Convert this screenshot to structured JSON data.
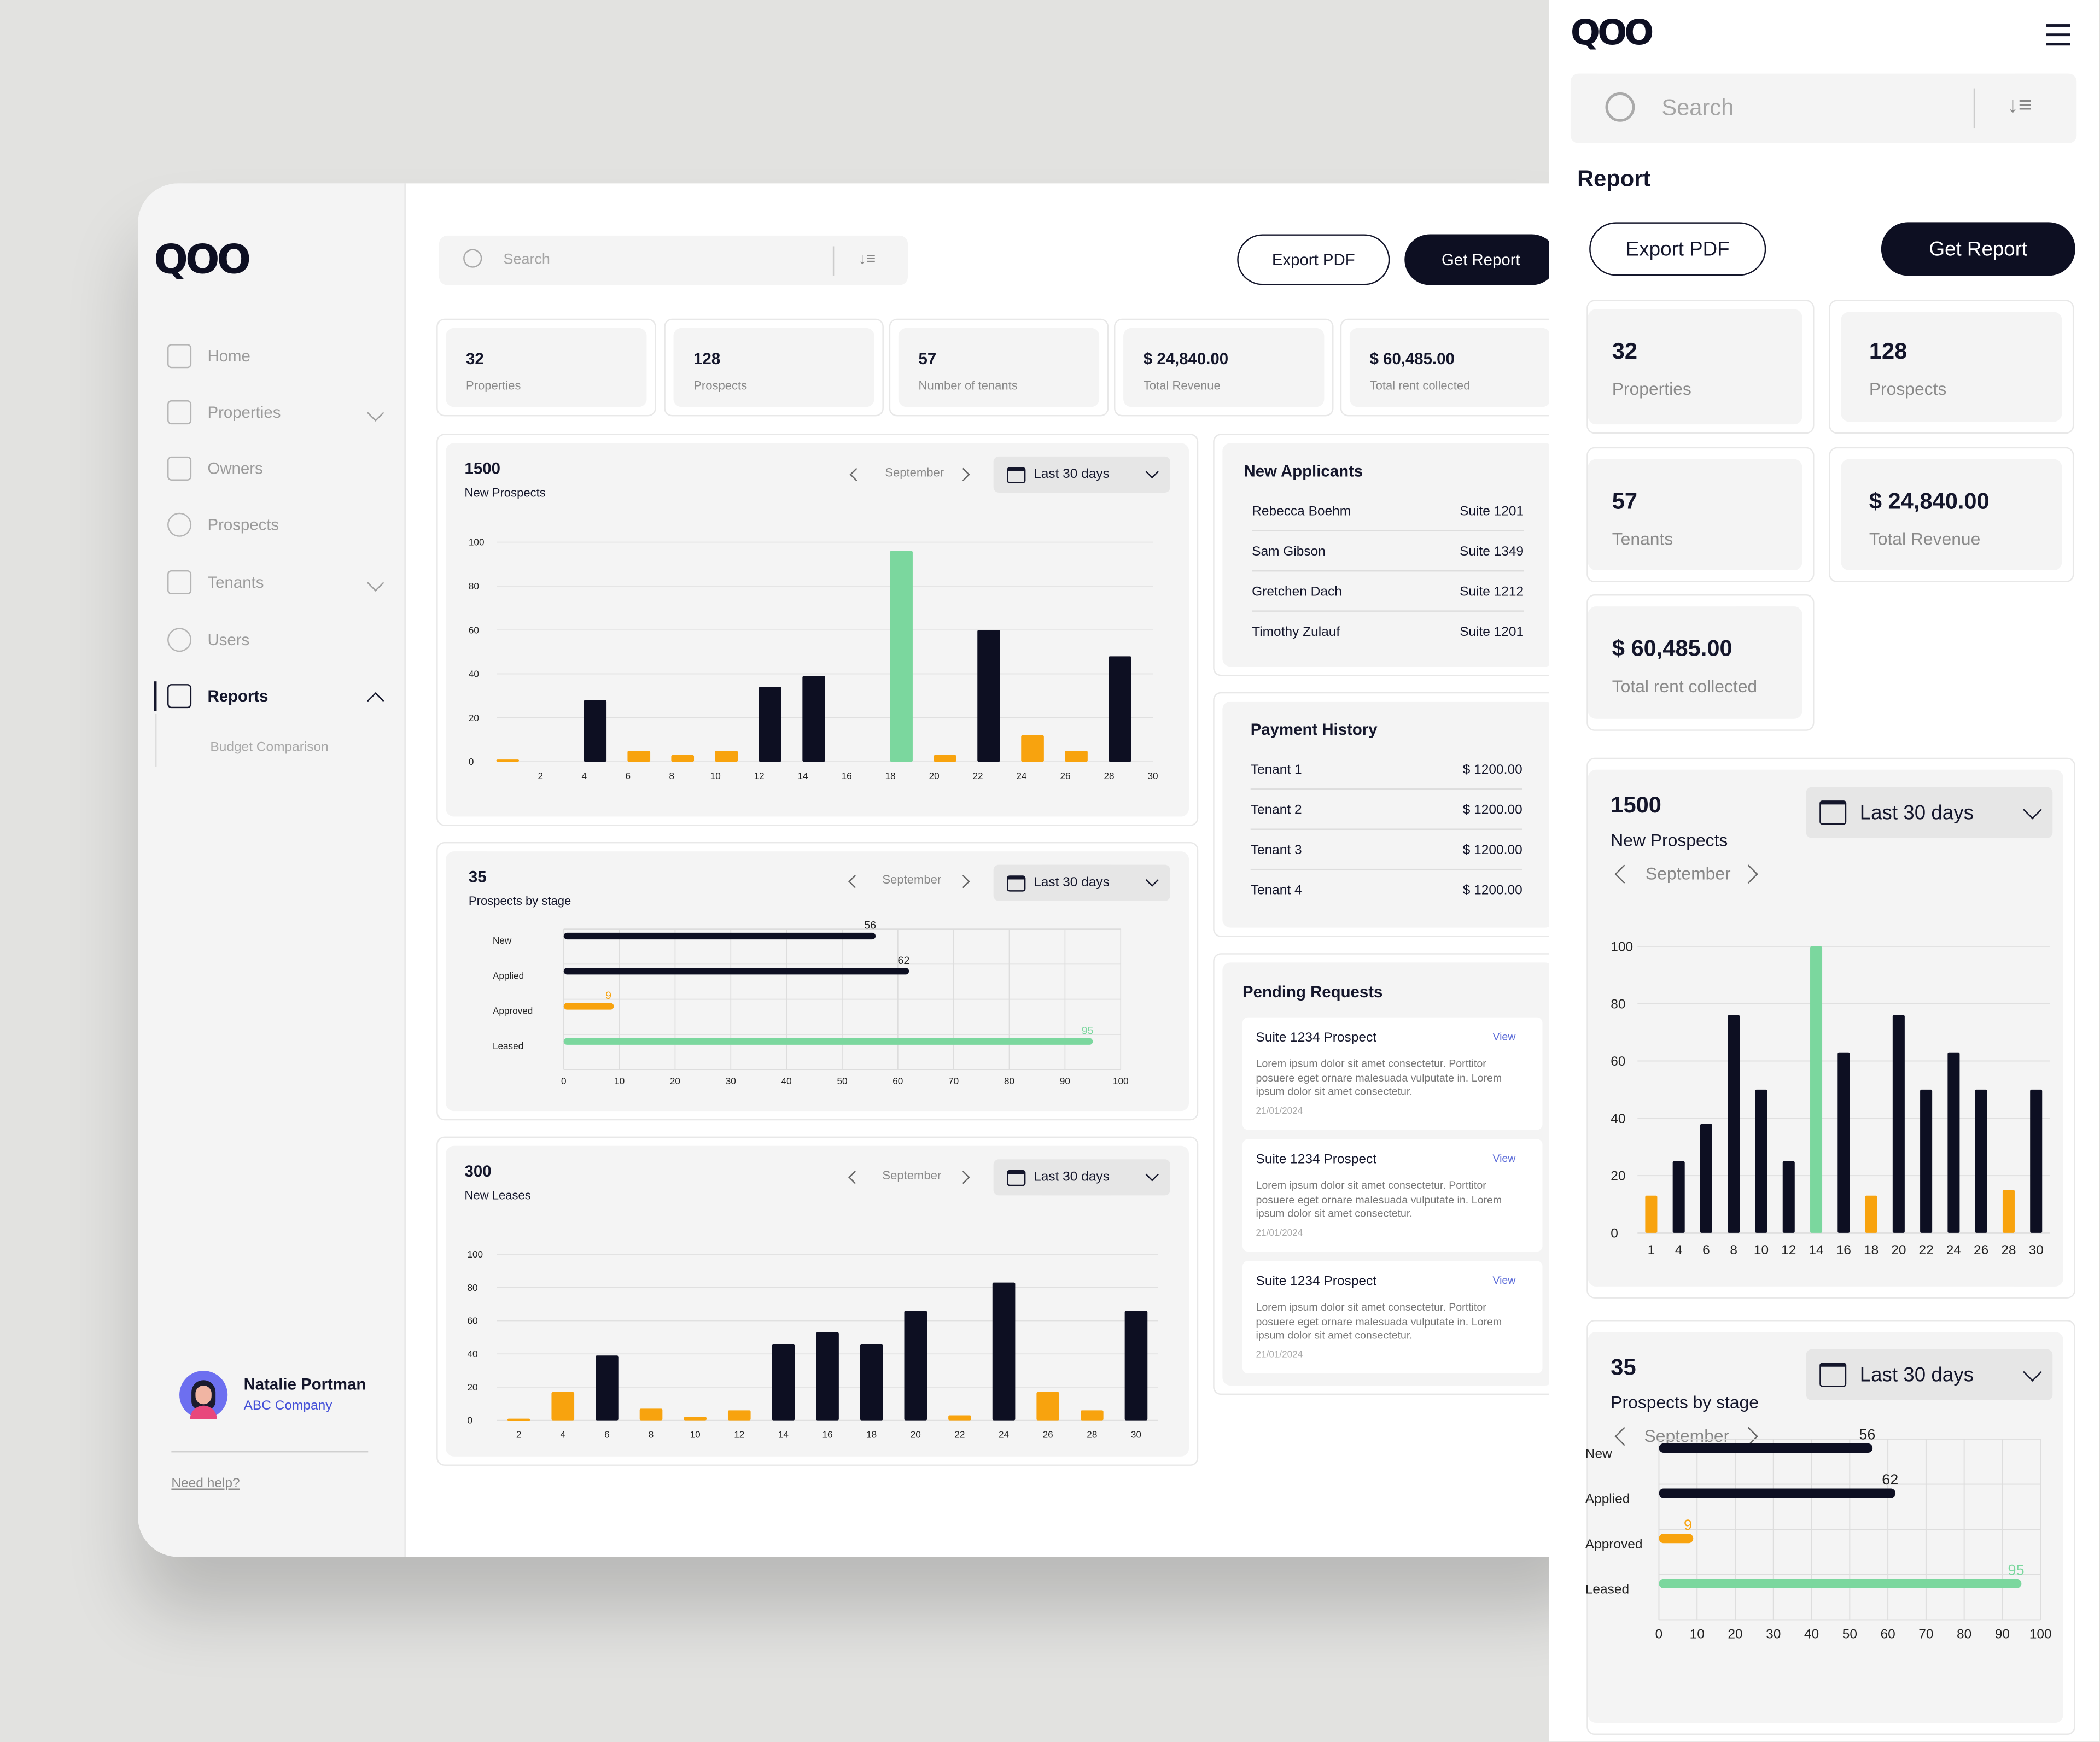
{
  "brand": {
    "logo": "QOO"
  },
  "search": {
    "placeholder": "Search"
  },
  "actions": {
    "export": "Export PDF",
    "report": "Get Report"
  },
  "sidebar": {
    "items": [
      {
        "label": "Home"
      },
      {
        "label": "Properties"
      },
      {
        "label": "Owners"
      },
      {
        "label": "Prospects"
      },
      {
        "label": "Tenants"
      },
      {
        "label": "Users"
      },
      {
        "label": "Reports"
      }
    ],
    "sub_item": "Budget Comparison",
    "user": {
      "name": "Natalie Portman",
      "company": "ABC Company"
    },
    "help": "Need help?"
  },
  "stats": [
    {
      "value": "32",
      "label": "Properties"
    },
    {
      "value": "128",
      "label": "Prospects"
    },
    {
      "value": "57",
      "label": "Number of tenants"
    },
    {
      "value": "$ 24,840.00",
      "label": "Total Revenue"
    },
    {
      "value": "$ 60,485.00",
      "label": "Total rent collected"
    }
  ],
  "mobile_stats": [
    {
      "value": "32",
      "label": "Properties"
    },
    {
      "value": "128",
      "label": "Prospects"
    },
    {
      "value": "57",
      "label": "Tenants"
    },
    {
      "value": "$ 24,840.00",
      "label": "Total Revenue"
    },
    {
      "value": "$ 60,485.00",
      "label": "Total rent collected"
    }
  ],
  "period": {
    "month": "September",
    "range": "Last 30 days"
  },
  "new_applicants": {
    "title": "New Applicants",
    "rows": [
      {
        "name": "Rebecca Boehm",
        "suite": "Suite 1201"
      },
      {
        "name": "Sam Gibson",
        "suite": "Suite 1349"
      },
      {
        "name": "Gretchen Dach",
        "suite": "Suite 1212"
      },
      {
        "name": "Timothy Zulauf",
        "suite": "Suite 1201"
      }
    ]
  },
  "payment_history": {
    "title": "Payment History",
    "rows": [
      {
        "tenant": "Tenant 1",
        "amount": "$ 1200.00"
      },
      {
        "tenant": "Tenant 2",
        "amount": "$ 1200.00"
      },
      {
        "tenant": "Tenant 3",
        "amount": "$ 1200.00"
      },
      {
        "tenant": "Tenant 4",
        "amount": "$ 1200.00"
      }
    ]
  },
  "pending_requests": {
    "title": "Pending Requests",
    "items": [
      {
        "title": "Suite 1234 Prospect",
        "action": "View",
        "text": "Lorem ipsum dolor sit amet consectetur. Porttitor posuere eget ornare malesuada vulputate in. Lorem ipsum dolor sit amet consectetur.",
        "date": "21/01/2024"
      },
      {
        "title": "Suite 1234 Prospect",
        "action": "View",
        "text": "Lorem ipsum dolor sit amet consectetur. Porttitor posuere eget ornare malesuada vulputate in. Lorem ipsum dolor sit amet consectetur.",
        "date": "21/01/2024"
      },
      {
        "title": "Suite 1234 Prospect",
        "action": "View",
        "text": "Lorem ipsum dolor sit amet consectetur. Porttitor posuere eget ornare malesuada vulputate in. Lorem ipsum dolor sit amet consectetur.",
        "date": "21/01/2024"
      }
    ]
  },
  "mobile": {
    "title": "Report"
  },
  "colors": {
    "dark": "#0d0f22",
    "orange": "#f8a30e",
    "green": "#7bd79e"
  },
  "chart_data": [
    {
      "id": "new_prospects",
      "type": "bar",
      "value": "1500",
      "title": "New Prospects",
      "x": [
        1,
        2,
        3,
        4,
        5,
        6,
        7,
        8,
        9,
        10,
        11,
        12,
        13,
        14,
        15,
        16,
        17,
        18,
        19,
        20,
        21,
        22,
        23,
        24,
        25,
        26,
        27,
        28,
        29,
        30
      ],
      "x_ticks": [
        2,
        4,
        6,
        8,
        10,
        12,
        14,
        16,
        18,
        20,
        22,
        24,
        26,
        28,
        30
      ],
      "values": [
        1,
        0,
        0,
        0,
        28,
        0,
        5,
        0,
        3,
        0,
        5,
        0,
        34,
        0,
        39,
        0,
        0,
        0,
        96,
        0,
        3,
        0,
        60,
        0,
        12,
        0,
        5,
        0,
        48,
        0
      ],
      "colors": [
        "o",
        "o",
        "o",
        "o",
        "d",
        "d",
        "o",
        "o",
        "o",
        "o",
        "o",
        "o",
        "d",
        "d",
        "d",
        "d",
        "d",
        "d",
        "g",
        "g",
        "o",
        "o",
        "d",
        "d",
        "o",
        "o",
        "o",
        "o",
        "d",
        "d"
      ],
      "ylim": [
        0,
        100
      ],
      "y_ticks": [
        0,
        20,
        40,
        60,
        80,
        100
      ]
    },
    {
      "id": "prospects_by_stage",
      "type": "bar",
      "orientation": "horizontal",
      "value": "35",
      "title": "Prospects by stage",
      "categories": [
        "New",
        "Applied",
        "Approved",
        "Leased"
      ],
      "values": [
        56,
        62,
        9,
        95
      ],
      "colors": [
        "d",
        "d",
        "o",
        "g"
      ],
      "xlim": [
        0,
        100
      ],
      "x_ticks": [
        0,
        10,
        20,
        30,
        40,
        50,
        60,
        70,
        80,
        90,
        100
      ]
    },
    {
      "id": "new_leases",
      "type": "bar",
      "value": "300",
      "title": "New Leases",
      "x_ticks": [
        2,
        4,
        6,
        8,
        10,
        12,
        14,
        16,
        18,
        20,
        22,
        24,
        26,
        28,
        30
      ],
      "values": [
        1,
        17,
        39,
        7,
        2,
        6,
        46,
        53,
        46,
        66,
        3,
        83,
        17,
        6,
        66
      ],
      "colors": [
        "o",
        "o",
        "d",
        "o",
        "o",
        "o",
        "d",
        "d",
        "d",
        "d",
        "o",
        "d",
        "o",
        "o",
        "d"
      ],
      "ylim": [
        0,
        100
      ],
      "y_ticks": [
        0,
        20,
        40,
        60,
        80,
        100
      ]
    },
    {
      "id": "mobile_new_prospects",
      "type": "bar",
      "value": "1500",
      "title": "New Prospects",
      "x_ticks": [
        1,
        4,
        6,
        8,
        10,
        12,
        14,
        16,
        18,
        20,
        22,
        24,
        26,
        28,
        30
      ],
      "values": [
        13,
        25,
        38,
        76,
        50,
        25,
        100,
        63,
        13,
        76,
        50,
        63,
        50,
        15,
        50
      ],
      "colors": [
        "o",
        "d",
        "d",
        "d",
        "d",
        "d",
        "g",
        "d",
        "o",
        "d",
        "d",
        "d",
        "d",
        "o",
        "d"
      ],
      "ylim": [
        0,
        100
      ],
      "y_ticks": [
        0,
        20,
        40,
        60,
        80,
        100
      ]
    },
    {
      "id": "mobile_prospects_by_stage",
      "type": "bar",
      "orientation": "horizontal",
      "value": "35",
      "title": "Prospects by stage",
      "categories": [
        "New",
        "Applied",
        "Approved",
        "Leased"
      ],
      "values": [
        56,
        62,
        9,
        95
      ],
      "colors": [
        "d",
        "d",
        "o",
        "g"
      ],
      "xlim": [
        0,
        100
      ],
      "x_ticks": [
        0,
        10,
        20,
        30,
        40,
        50,
        60,
        70,
        80,
        90,
        100
      ]
    }
  ]
}
